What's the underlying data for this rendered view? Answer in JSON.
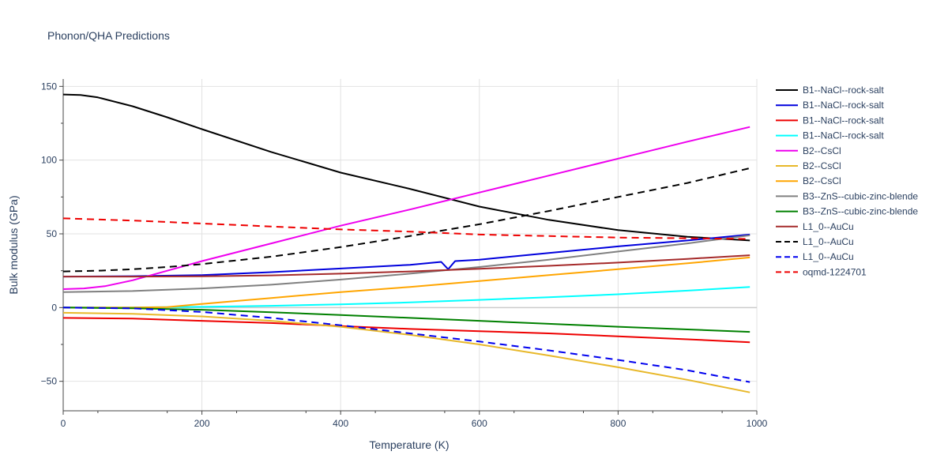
{
  "chart_data": {
    "type": "line",
    "title": "Phonon/QHA Predictions",
    "xlabel": "Temperature (K)",
    "ylabel": "Bulk modulus (GPa)",
    "xlim": [
      0,
      1000
    ],
    "ylim": [
      -70,
      155
    ],
    "xticks": [
      0,
      200,
      400,
      600,
      800,
      1000
    ],
    "yticks": [
      -50,
      0,
      50,
      100,
      150
    ],
    "grid": true,
    "legend_position": "right",
    "series": [
      {
        "name": "B1--NaCl--rock-salt",
        "color": "#000000",
        "dash": "solid",
        "x": [
          0,
          25,
          50,
          100,
          150,
          200,
          300,
          400,
          500,
          600,
          700,
          800,
          900,
          990
        ],
        "y": [
          144.5,
          144.2,
          142.5,
          136.5,
          129,
          121,
          105.5,
          91.5,
          80.5,
          68.5,
          59.5,
          52.5,
          48,
          45.5
        ]
      },
      {
        "name": "B1--NaCl--rock-salt",
        "color": "#0000dd",
        "dash": "solid",
        "x": [
          0,
          100,
          200,
          300,
          400,
          500,
          545,
          555,
          565,
          600,
          700,
          800,
          900,
          990
        ],
        "y": [
          21,
          21.3,
          22,
          24,
          26.5,
          29,
          31,
          26,
          31.5,
          32.5,
          37,
          41.5,
          45.5,
          49.5
        ]
      },
      {
        "name": "B1--NaCl--rock-salt",
        "color": "#ee0000",
        "dash": "solid",
        "x": [
          0,
          100,
          200,
          300,
          400,
          500,
          600,
          700,
          800,
          900,
          990
        ],
        "y": [
          -7,
          -7.5,
          -9,
          -10.5,
          -12.5,
          -14.5,
          -16,
          -17.5,
          -19.5,
          -21.5,
          -23.5
        ]
      },
      {
        "name": "B1--NaCl--rock-salt",
        "color": "#00ffff",
        "dash": "solid",
        "x": [
          0,
          100,
          200,
          300,
          400,
          500,
          600,
          700,
          800,
          900,
          990
        ],
        "y": [
          0,
          0.1,
          0.5,
          1.2,
          2.2,
          3.5,
          5.2,
          7,
          9,
          11.5,
          14
        ]
      },
      {
        "name": "B2--CsCl",
        "color": "#ee00ee",
        "dash": "solid",
        "x": [
          0,
          30,
          60,
          100,
          150,
          200,
          300,
          400,
          500,
          600,
          700,
          800,
          900,
          990
        ],
        "y": [
          12.5,
          13,
          14.5,
          18.5,
          25,
          31.5,
          43.5,
          55.5,
          66.5,
          78,
          89.5,
          101,
          112.5,
          122.5
        ]
      },
      {
        "name": "B2--CsCl",
        "color": "#e8b82a",
        "dash": "solid",
        "x": [
          0,
          100,
          200,
          300,
          400,
          500,
          600,
          700,
          800,
          900,
          990
        ],
        "y": [
          -3.5,
          -4.2,
          -6,
          -9,
          -13,
          -18.5,
          -25,
          -32.5,
          -40.5,
          -49,
          -57.5
        ]
      },
      {
        "name": "B2--CsCl",
        "color": "#ffa500",
        "dash": "solid",
        "x": [
          0,
          100,
          150,
          200,
          300,
          400,
          500,
          600,
          700,
          800,
          900,
          990
        ],
        "y": [
          0,
          0,
          0.3,
          2.5,
          6.5,
          10.5,
          14,
          18,
          22,
          26,
          30,
          34
        ]
      },
      {
        "name": "B3--ZnS--cubic-zinc-blende",
        "color": "#808080",
        "dash": "solid",
        "x": [
          0,
          100,
          200,
          300,
          400,
          500,
          600,
          700,
          800,
          900,
          990
        ],
        "y": [
          10.5,
          11.2,
          13,
          15.5,
          19,
          23,
          27.5,
          32.5,
          38,
          43.5,
          49
        ]
      },
      {
        "name": "B3--ZnS--cubic-zinc-blende",
        "color": "#008000",
        "dash": "solid",
        "x": [
          0,
          100,
          200,
          300,
          400,
          500,
          600,
          700,
          800,
          900,
          990
        ],
        "y": [
          0,
          -0.5,
          -1.5,
          -3.2,
          -5,
          -7,
          -9,
          -11,
          -13,
          -14.8,
          -16.5
        ]
      },
      {
        "name": "L1_0--AuCu",
        "color": "#a52a2a",
        "dash": "solid",
        "x": [
          0,
          100,
          200,
          300,
          400,
          500,
          600,
          700,
          800,
          900,
          990
        ],
        "y": [
          21,
          21,
          21.2,
          21.8,
          23,
          24.5,
          26.3,
          28.3,
          30.5,
          33,
          35.5
        ]
      },
      {
        "name": "L1_0--AuCu",
        "color": "#000000",
        "dash": "dash",
        "x": [
          0,
          50,
          100,
          150,
          200,
          300,
          400,
          500,
          600,
          700,
          800,
          900,
          990
        ],
        "y": [
          24.5,
          25,
          26,
          27.5,
          29.5,
          34.5,
          41,
          48.5,
          56.5,
          65.5,
          75,
          84.5,
          94.5
        ]
      },
      {
        "name": "L1_0--AuCu",
        "color": "#0000ee",
        "dash": "dash",
        "x": [
          0,
          100,
          200,
          300,
          400,
          500,
          600,
          700,
          800,
          900,
          990
        ],
        "y": [
          0,
          -0.5,
          -3,
          -7,
          -12,
          -17.5,
          -23,
          -29,
          -35.5,
          -42.5,
          -50.5
        ]
      },
      {
        "name": "oqmd-1224701",
        "color": "#ee0000",
        "dash": "dash",
        "x": [
          0,
          100,
          200,
          300,
          400,
          500,
          600,
          700,
          800,
          900,
          990
        ],
        "y": [
          60.5,
          59,
          57,
          55,
          53,
          51.5,
          49.5,
          48.5,
          47.5,
          47,
          46.5
        ]
      }
    ]
  }
}
